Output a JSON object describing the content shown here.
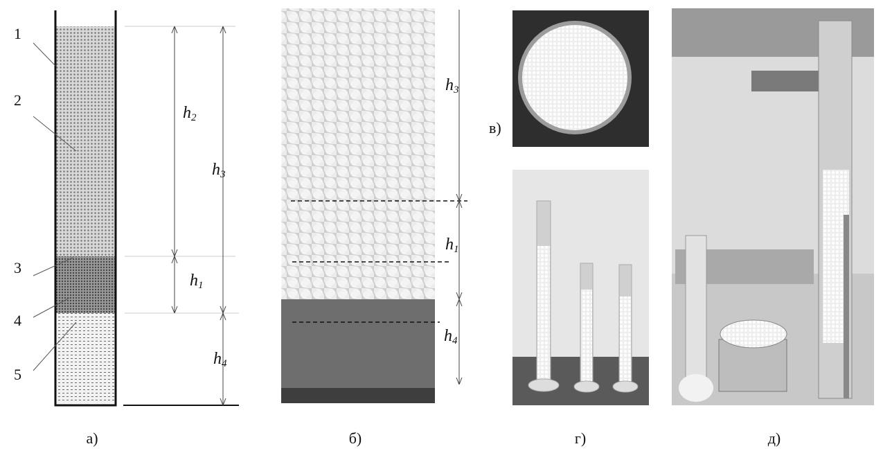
{
  "panel_a": {
    "labels": [
      "1",
      "2",
      "3",
      "4",
      "5"
    ],
    "dims": [
      {
        "base": "h",
        "sub": "2"
      },
      {
        "base": "h",
        "sub": "3"
      },
      {
        "base": "h",
        "sub": "1"
      },
      {
        "base": "h",
        "sub": "4"
      }
    ],
    "caption": "а)"
  },
  "panel_b": {
    "dims": [
      {
        "base": "h",
        "sub": "3"
      },
      {
        "base": "h",
        "sub": "1"
      },
      {
        "base": "h",
        "sub": "4"
      }
    ],
    "caption": "б)"
  },
  "panel_c": {
    "caption": "в)"
  },
  "panel_d": {
    "caption": "г)"
  },
  "panel_e": {
    "caption": "д)"
  }
}
